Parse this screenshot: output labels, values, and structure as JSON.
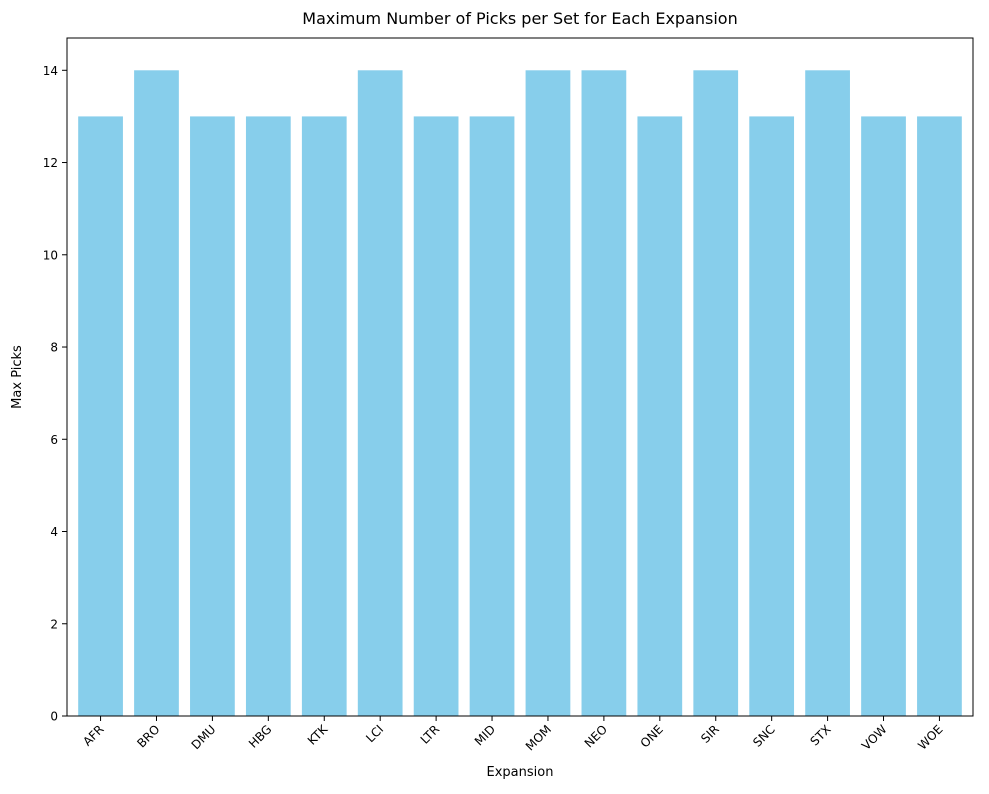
{
  "chart_data": {
    "type": "bar",
    "title": "Maximum Number of Picks per Set for Each Expansion",
    "xlabel": "Expansion",
    "ylabel": "Max Picks",
    "categories": [
      "AFR",
      "BRO",
      "DMU",
      "HBG",
      "KTK",
      "LCI",
      "LTR",
      "MID",
      "MOM",
      "NEO",
      "ONE",
      "SIR",
      "SNC",
      "STX",
      "VOW",
      "WOE"
    ],
    "values": [
      13,
      14,
      13,
      13,
      13,
      14,
      13,
      13,
      14,
      14,
      13,
      14,
      13,
      14,
      13,
      13
    ],
    "ylim": [
      0,
      14.7
    ],
    "yticks": [
      0,
      2,
      4,
      6,
      8,
      10,
      12,
      14
    ],
    "bar_color": "#87CEEB",
    "grid": false,
    "legend": "none"
  }
}
